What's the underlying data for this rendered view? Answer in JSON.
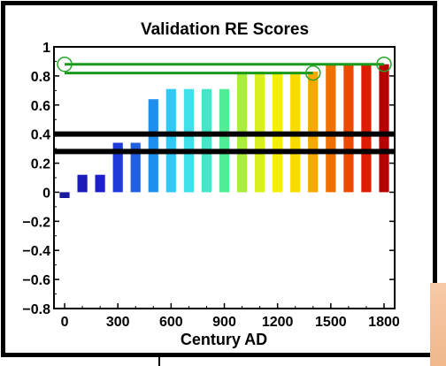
{
  "chart_data": {
    "type": "bar",
    "title": "Validation RE Scores",
    "xlabel": "Century AD",
    "ylabel": "",
    "x": [
      0,
      100,
      200,
      300,
      400,
      500,
      600,
      700,
      800,
      900,
      1000,
      1100,
      1200,
      1300,
      1400,
      1500,
      1600,
      1700,
      1800
    ],
    "values": [
      -0.04,
      0.12,
      0.12,
      0.34,
      0.34,
      0.64,
      0.71,
      0.71,
      0.71,
      0.71,
      0.83,
      0.83,
      0.83,
      0.83,
      0.83,
      0.88,
      0.88,
      0.88,
      0.88
    ],
    "bar_colors": [
      "#1a1aa0",
      "#1c1cb8",
      "#1e1ecc",
      "#1e3ad8",
      "#2060e0",
      "#1f8fee",
      "#30c8f4",
      "#40e0e8",
      "#44e8c8",
      "#50ec98",
      "#a8ee3a",
      "#d8f020",
      "#f4f000",
      "#f8dc00",
      "#f8a800",
      "#f07000",
      "#ec4a00",
      "#e01c00",
      "#b80000"
    ],
    "xticks": [
      0,
      300,
      600,
      900,
      1200,
      1500,
      1800
    ],
    "xtick_labels": [
      "0",
      "300",
      "600",
      "900",
      "1200",
      "1500",
      "1800"
    ],
    "yticks": [
      -0.8,
      -0.6,
      -0.4,
      -0.2,
      0,
      0.2,
      0.4,
      0.6,
      0.8,
      1
    ],
    "ytick_labels": [
      "−0.8",
      "−0.6",
      "−0.4",
      "−0.2",
      "0",
      "0.2",
      "0.4",
      "0.6",
      "0.8",
      "1"
    ],
    "xlim": [
      -60,
      1860
    ],
    "ylim": [
      -0.8,
      1.0
    ],
    "reference_lines": [
      {
        "y": 0.4,
        "color": "#000000"
      },
      {
        "y": 0.28,
        "color": "#000000"
      }
    ],
    "highlight_lines": [
      {
        "x": [
          0,
          1800
        ],
        "y": [
          0.88,
          0.88
        ],
        "color": "#1a9a1a"
      },
      {
        "x": [
          0,
          1400
        ],
        "y": [
          0.82,
          0.82
        ],
        "color": "#1a9a1a"
      }
    ],
    "highlight_circles": [
      {
        "x": 0,
        "y": 0.88,
        "color": "#2aa52a"
      },
      {
        "x": 1400,
        "y": 0.82,
        "color": "#2aa52a"
      },
      {
        "x": 1800,
        "y": 0.88,
        "color": "#2aa52a"
      }
    ],
    "grid": false,
    "legend": "none"
  }
}
